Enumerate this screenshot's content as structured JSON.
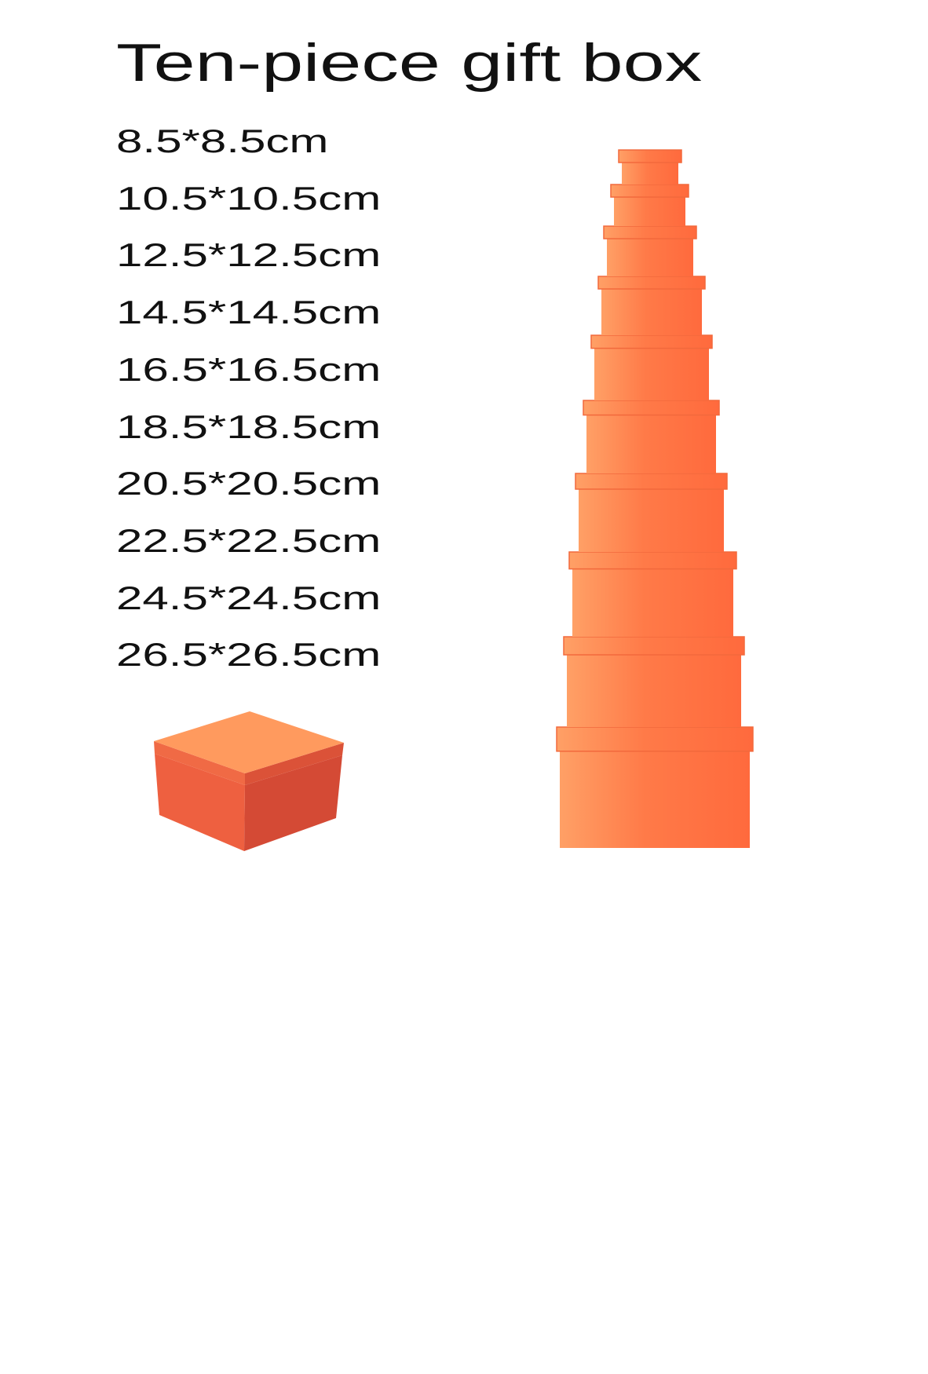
{
  "title": "Ten-piece gift box",
  "sizes": [
    "8.5*8.5cm",
    "10.5*10.5cm",
    "12.5*12.5cm",
    "14.5*14.5cm",
    "16.5*16.5cm",
    "18.5*18.5cm",
    "20.5*20.5cm",
    "22.5*22.5cm",
    "24.5*24.5cm",
    "26.5*26.5cm"
  ],
  "colors": {
    "box_light": "#ffa066",
    "box_dark": "#ff6a3d",
    "single_top": "#ff9a5e",
    "single_left": "#ee6040",
    "single_right": "#d44a35"
  }
}
